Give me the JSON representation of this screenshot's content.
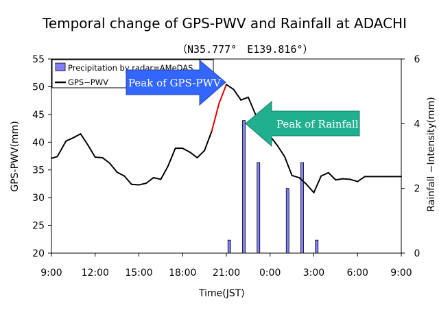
{
  "chart_data": {
    "type": "line",
    "title": "Temporal change of  GPS-PWV and Rainfall at ADACHI",
    "subtitle": "（N35.777°　E139.816°）",
    "xlabel": "Time(JST)",
    "ylabel_left": "GPS-PWV(mm)",
    "ylabel_right": "Rainfall −Intensity(mm)",
    "x_ticks": [
      "9:00",
      "12:00",
      "15:00",
      "18:00",
      "21:00",
      "0:00",
      "3:00",
      "6:00",
      "9:00"
    ],
    "y_left_ticks": [
      "20",
      "25",
      "30",
      "35",
      "40",
      "45",
      "50",
      "55"
    ],
    "y_right_ticks": [
      "0",
      "2",
      "4",
      "6"
    ],
    "ylim_left": [
      20,
      55
    ],
    "ylim_right": [
      0,
      6
    ],
    "xlim_hours": [
      0,
      24
    ],
    "grid": false,
    "legend_position": "top-left",
    "legend": {
      "precip": "Precipitation by radar=AMeDAS",
      "pwv": "GPS−PWV"
    },
    "colors": {
      "pwv": "#000000",
      "pwv_peak_rise": "#e00000",
      "precip_fill": "#8080ff",
      "peak_pwv_arrow": "#3366ff",
      "peak_rain_arrow": "#20b090"
    },
    "annotations": {
      "peak_pwv": "Peak of GPS-PWV",
      "peak_rain": "Peak of Rainfall"
    },
    "series": [
      {
        "name": "GPS−PWV",
        "x": [
          0,
          0.4,
          1,
          1.5,
          2,
          2.5,
          3,
          3.5,
          4,
          4.5,
          5,
          5.5,
          6,
          6.5,
          7,
          7.5,
          8,
          8.5,
          9,
          9.5,
          10,
          10.5,
          11,
          11.5,
          12,
          12.5,
          13,
          13.5,
          14,
          14.5,
          15,
          15.5,
          16,
          16.5,
          17,
          17.5,
          18,
          18.5,
          19,
          19.5,
          20,
          20.5,
          21,
          21.5,
          22,
          22.5,
          23,
          23.5,
          24
        ],
        "values": [
          37.1,
          37.4,
          40.2,
          40.8,
          41.5,
          39.5,
          37.3,
          37.2,
          36.2,
          34.6,
          33.9,
          32.4,
          32.3,
          32.6,
          33.6,
          33.3,
          35.7,
          38.9,
          38.9,
          38.2,
          37.2,
          38.5,
          42.0,
          47.0,
          50.4,
          49.5,
          47.6,
          48.1,
          45.0,
          42.6,
          41.1,
          39.4,
          37.4,
          34.0,
          33.6,
          32.4,
          30.9,
          33.9,
          34.5,
          33.2,
          33.4,
          33.3,
          32.9,
          33.8,
          33.8,
          33.8,
          33.8,
          33.8,
          33.8
        ]
      }
    ],
    "precip_bars": {
      "name": "Precipitation by radar=AMeDAS",
      "x": [
        12.2,
        13.2,
        14.2,
        16.2,
        17.2,
        18.2
      ],
      "values": [
        0.4,
        4.1,
        2.8,
        2.0,
        2.8,
        0.4
      ]
    },
    "peak_rise_range": [
      11.0,
      12.2
    ]
  }
}
